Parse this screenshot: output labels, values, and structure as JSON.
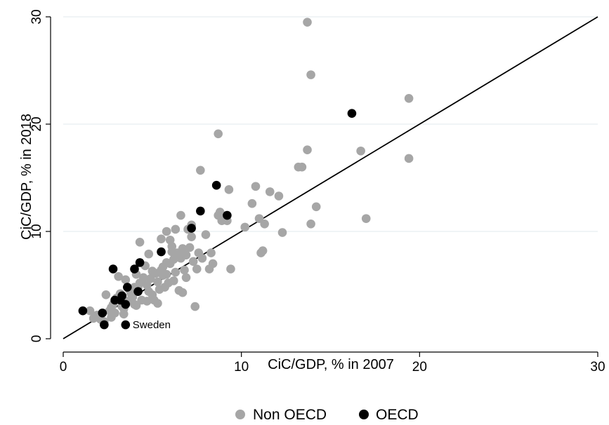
{
  "chart_data": {
    "type": "scatter",
    "title": "",
    "xlabel": "CiC/GDP, % in 2007",
    "ylabel": "CiC/GDP, % in 2018",
    "xlim": [
      0,
      30
    ],
    "ylim": [
      0,
      30
    ],
    "x_ticks": [
      0,
      10,
      20,
      30
    ],
    "y_ticks": [
      0,
      10,
      20,
      30
    ],
    "grid": "horizontal",
    "legend_position": "bottom",
    "reference_line": {
      "from": [
        0,
        0
      ],
      "to": [
        30,
        30
      ],
      "color": "#000000"
    },
    "series": [
      {
        "name": "Non OECD",
        "color": "#a6a6a6",
        "points": [
          [
            1.5,
            2.6
          ],
          [
            1.7,
            1.9
          ],
          [
            1.9,
            2.2
          ],
          [
            2.1,
            1.8
          ],
          [
            2.3,
            1.6
          ],
          [
            2.4,
            4.1
          ],
          [
            2.6,
            2.6
          ],
          [
            2.7,
            2.0
          ],
          [
            2.8,
            3.2
          ],
          [
            2.9,
            2.4
          ],
          [
            3.0,
            3.8
          ],
          [
            3.1,
            5.8
          ],
          [
            3.2,
            4.2
          ],
          [
            3.3,
            3.0
          ],
          [
            3.4,
            2.8
          ],
          [
            3.5,
            5.5
          ],
          [
            3.6,
            3.5
          ],
          [
            3.7,
            4.6
          ],
          [
            3.8,
            4.2
          ],
          [
            3.9,
            3.9
          ],
          [
            4.0,
            3.2
          ],
          [
            4.1,
            6.0
          ],
          [
            4.2,
            4.8
          ],
          [
            4.3,
            5.2
          ],
          [
            4.4,
            3.6
          ],
          [
            4.5,
            5.7
          ],
          [
            4.6,
            6.8
          ],
          [
            4.7,
            5.0
          ],
          [
            4.8,
            4.4
          ],
          [
            4.9,
            5.6
          ],
          [
            5.0,
            6.3
          ],
          [
            5.1,
            3.6
          ],
          [
            5.2,
            6.1
          ],
          [
            5.3,
            5.3
          ],
          [
            5.4,
            4.6
          ],
          [
            5.5,
            6.4
          ],
          [
            5.6,
            5.9
          ],
          [
            5.7,
            4.8
          ],
          [
            5.8,
            6.0
          ],
          [
            5.9,
            5.2
          ],
          [
            6.0,
            7.0
          ],
          [
            6.1,
            8.6
          ],
          [
            6.2,
            7.4
          ],
          [
            6.3,
            6.2
          ],
          [
            6.4,
            8.0
          ],
          [
            6.5,
            4.5
          ],
          [
            6.6,
            7.5
          ],
          [
            6.7,
            8.4
          ],
          [
            6.8,
            6.4
          ],
          [
            6.9,
            7.8
          ],
          [
            7.0,
            10.2
          ],
          [
            7.1,
            8.5
          ],
          [
            7.2,
            10.6
          ],
          [
            7.3,
            7.2
          ],
          [
            7.4,
            3.0
          ],
          [
            7.6,
            8.0
          ],
          [
            7.8,
            7.5
          ],
          [
            8.0,
            9.7
          ],
          [
            8.2,
            6.5
          ],
          [
            8.4,
            7.0
          ],
          [
            8.7,
            11.5
          ],
          [
            8.9,
            11.0
          ],
          [
            9.2,
            11.0
          ],
          [
            9.4,
            6.5
          ],
          [
            4.3,
            9.0
          ],
          [
            4.8,
            7.9
          ],
          [
            5.5,
            9.3
          ],
          [
            5.8,
            10.0
          ],
          [
            6.0,
            9.2
          ],
          [
            6.3,
            10.2
          ],
          [
            6.6,
            11.5
          ],
          [
            7.7,
            15.7
          ],
          [
            8.7,
            19.1
          ],
          [
            9.3,
            13.9
          ],
          [
            10.2,
            10.4
          ],
          [
            10.6,
            12.6
          ],
          [
            10.8,
            14.2
          ],
          [
            11.0,
            11.2
          ],
          [
            11.1,
            8.0
          ],
          [
            11.2,
            8.2
          ],
          [
            11.3,
            10.7
          ],
          [
            11.6,
            13.7
          ],
          [
            12.1,
            13.3
          ],
          [
            12.3,
            9.9
          ],
          [
            13.2,
            16.0
          ],
          [
            13.4,
            16.0
          ],
          [
            13.7,
            17.6
          ],
          [
            13.9,
            10.7
          ],
          [
            14.2,
            12.3
          ],
          [
            13.7,
            29.5
          ],
          [
            13.9,
            24.6
          ],
          [
            16.7,
            17.5
          ],
          [
            17.0,
            11.2
          ],
          [
            19.4,
            22.4
          ],
          [
            19.4,
            16.8
          ],
          [
            8.8,
            11.8
          ],
          [
            4.1,
            3.1
          ],
          [
            4.7,
            3.5
          ],
          [
            5.3,
            3.3
          ],
          [
            6.7,
            4.3
          ],
          [
            6.1,
            8.1
          ],
          [
            5.8,
            7.1
          ],
          [
            6.9,
            5.7
          ],
          [
            4.0,
            4.8
          ],
          [
            3.4,
            2.3
          ],
          [
            2.7,
            2.9
          ],
          [
            7.5,
            6.5
          ],
          [
            6.2,
            5.4
          ],
          [
            5.0,
            4.1
          ],
          [
            3.9,
            4.5
          ],
          [
            7.2,
            9.5
          ],
          [
            6.5,
            7.8
          ],
          [
            5.6,
            6.7
          ],
          [
            8.3,
            8.0
          ]
        ]
      },
      {
        "name": "OECD",
        "color": "#000000",
        "points": [
          [
            1.1,
            2.6
          ],
          [
            2.2,
            2.4
          ],
          [
            2.3,
            1.3
          ],
          [
            2.8,
            6.5
          ],
          [
            2.9,
            3.6
          ],
          [
            3.2,
            3.6
          ],
          [
            3.3,
            4.0
          ],
          [
            3.5,
            3.2
          ],
          [
            3.6,
            4.8
          ],
          [
            4.0,
            6.5
          ],
          [
            4.2,
            4.4
          ],
          [
            4.3,
            7.1
          ],
          [
            5.5,
            8.1
          ],
          [
            7.2,
            10.3
          ],
          [
            7.7,
            11.9
          ],
          [
            8.6,
            14.3
          ],
          [
            9.2,
            11.5
          ],
          [
            16.2,
            21.0
          ],
          [
            3.5,
            1.3
          ]
        ]
      }
    ],
    "annotations": [
      {
        "text": "Sweden",
        "x": 3.5,
        "y": 1.3
      }
    ]
  }
}
